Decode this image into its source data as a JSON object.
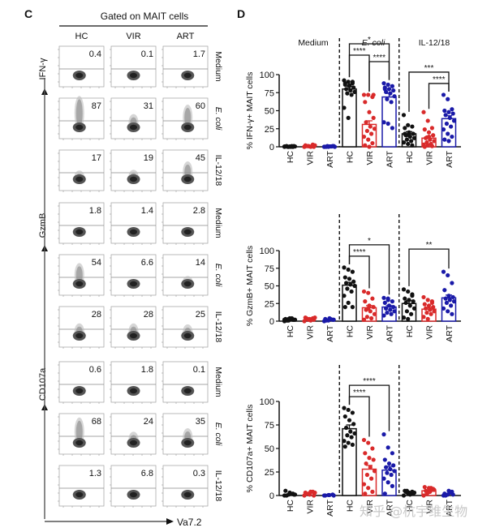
{
  "panel_c": {
    "label": "C",
    "header": "Gated on MAIT cells",
    "columns": [
      "HC",
      "VIR",
      "ART"
    ],
    "conditions": [
      "Medium",
      "E. coli",
      "IL-12/18"
    ],
    "x_axis_label": "Va7.2",
    "blocks": [
      {
        "marker": "IFN-γ",
        "values": [
          [
            "0.4",
            "0.1",
            "1.7"
          ],
          [
            "87",
            "31",
            "60"
          ],
          [
            "17",
            "19",
            "45"
          ]
        ]
      },
      {
        "marker": "GzmB",
        "values": [
          [
            "1.8",
            "1.4",
            "2.8"
          ],
          [
            "54",
            "6.6",
            "14"
          ],
          [
            "28",
            "28",
            "25"
          ]
        ]
      },
      {
        "marker": "CD107a",
        "values": [
          [
            "0.6",
            "1.8",
            "0.1"
          ],
          [
            "68",
            "24",
            "35"
          ],
          [
            "1.3",
            "6.8",
            "0.3"
          ]
        ]
      }
    ]
  },
  "panel_d": {
    "label": "D",
    "group_headers": [
      "Medium",
      "E. coli",
      "IL-12/18"
    ]
  },
  "colors": {
    "HC": "#111111",
    "VIR": "#d92a2a",
    "ART": "#1a1aa8"
  },
  "watermark": "知乎 @杭宇维生物",
  "chart_data": [
    {
      "type": "bar",
      "title": "",
      "ylabel": "% IFN-γ+ MAIT cells",
      "ylim": [
        0,
        100
      ],
      "yticks": [
        0,
        25,
        50,
        75,
        100
      ],
      "categories": [
        "HC",
        "VIR",
        "ART",
        "HC",
        "VIR",
        "ART",
        "HC",
        "VIR",
        "ART"
      ],
      "groups": [
        "Medium",
        "Medium",
        "Medium",
        "E. coli",
        "E. coli",
        "E. coli",
        "IL-12/18",
        "IL-12/18",
        "IL-12/18"
      ],
      "values": [
        0.5,
        1,
        0.5,
        80,
        31,
        69,
        18,
        12,
        39
      ],
      "errors": [
        0.2,
        0.4,
        0.2,
        4,
        5,
        5,
        3,
        3,
        4
      ],
      "points": [
        [
          0,
          0,
          0,
          0.5,
          0.5,
          1,
          1,
          0,
          0.5,
          0,
          1,
          0.5,
          0,
          0,
          0.5
        ],
        [
          0,
          1,
          3,
          2,
          0.5,
          0,
          1,
          0,
          2,
          1,
          0.5,
          0
        ],
        [
          0,
          0.5,
          1,
          0,
          0.5,
          1,
          0,
          0.5,
          0,
          1,
          0.5,
          0,
          0
        ],
        [
          92,
          90,
          88,
          86,
          84,
          82,
          80,
          78,
          76,
          74,
          72,
          54,
          40,
          90,
          88,
          85
        ],
        [
          72,
          72,
          69,
          62,
          48,
          40,
          34,
          28,
          25,
          22,
          18,
          14,
          10,
          5,
          2,
          0,
          72
        ],
        [
          88,
          86,
          84,
          82,
          80,
          78,
          76,
          74,
          70,
          66,
          62,
          34,
          32,
          26,
          80
        ],
        [
          44,
          30,
          28,
          26,
          20,
          18,
          16,
          14,
          12,
          10,
          8,
          6,
          4,
          2,
          18,
          16
        ],
        [
          48,
          36,
          26,
          24,
          20,
          16,
          12,
          10,
          8,
          6,
          4,
          3,
          2,
          1,
          0,
          14
        ],
        [
          72,
          66,
          52,
          50,
          48,
          46,
          44,
          40,
          36,
          32,
          28,
          24,
          18,
          14,
          10,
          8
        ]
      ],
      "significance": [
        {
          "from": 3,
          "to": 5,
          "label": "*"
        },
        {
          "from": 3,
          "to": 4,
          "label": "****"
        },
        {
          "from": 4,
          "to": 5,
          "label": "****"
        },
        {
          "from": 6,
          "to": 8,
          "label": "***"
        },
        {
          "from": 7,
          "to": 8,
          "label": "****"
        }
      ]
    },
    {
      "type": "bar",
      "title": "",
      "ylabel": "% GzmB+ MAIT cells",
      "ylim": [
        0,
        100
      ],
      "yticks": [
        0,
        25,
        50,
        75,
        100
      ],
      "categories": [
        "HC",
        "VIR",
        "ART",
        "HC",
        "VIR",
        "ART",
        "HC",
        "VIR",
        "ART"
      ],
      "groups": [
        "Medium",
        "Medium",
        "Medium",
        "E. coli",
        "E. coli",
        "E. coli",
        "IL-12/18",
        "IL-12/18",
        "IL-12/18"
      ],
      "values": [
        2,
        3,
        2,
        51,
        19,
        20,
        25,
        17,
        33
      ],
      "errors": [
        0.5,
        0.5,
        0.5,
        4,
        3,
        2,
        4,
        2,
        4
      ],
      "points": [
        [
          0,
          1,
          2,
          3,
          4,
          2,
          1,
          3,
          2,
          1,
          4,
          2,
          3
        ],
        [
          0,
          2,
          4,
          5,
          3,
          2,
          4,
          1,
          5,
          3
        ],
        [
          0,
          1,
          2,
          3,
          4,
          2,
          1,
          3
        ],
        [
          76,
          73,
          70,
          62,
          60,
          56,
          54,
          52,
          50,
          46,
          42,
          36,
          26,
          20,
          20
        ],
        [
          42,
          40,
          32,
          28,
          22,
          20,
          16,
          14,
          10,
          6,
          4,
          2,
          18
        ],
        [
          33,
          30,
          28,
          26,
          22,
          20,
          18,
          16,
          14,
          12,
          10,
          8,
          32
        ],
        [
          45,
          42,
          38,
          32,
          30,
          28,
          26,
          22,
          18,
          14,
          10,
          5,
          3,
          36
        ],
        [
          34,
          30,
          28,
          24,
          22,
          20,
          18,
          16,
          14,
          12,
          10,
          6,
          3,
          26
        ],
        [
          70,
          65,
          54,
          44,
          36,
          34,
          32,
          30,
          28,
          26,
          22,
          18,
          14,
          10
        ]
      ],
      "significance": [
        {
          "from": 3,
          "to": 5,
          "label": "*"
        },
        {
          "from": 3,
          "to": 4,
          "label": "****"
        },
        {
          "from": 6,
          "to": 8,
          "label": "**"
        }
      ]
    },
    {
      "type": "bar",
      "title": "",
      "ylabel": "% CD107a+ MAIT cells",
      "ylim": [
        0,
        100
      ],
      "yticks": [
        0,
        25,
        50,
        75,
        100
      ],
      "categories": [
        "HC",
        "VIR",
        "ART",
        "HC",
        "VIR",
        "ART",
        "HC",
        "VIR",
        "ART"
      ],
      "groups": [
        "Medium",
        "Medium",
        "Medium",
        "E. coli",
        "E. coli",
        "E. coli",
        "IL-12/18",
        "IL-12/18",
        "IL-12/18"
      ],
      "values": [
        1.5,
        2,
        0.5,
        71,
        28,
        27,
        3,
        5,
        1
      ],
      "errors": [
        0.5,
        0.5,
        0.2,
        4,
        4,
        4,
        0.5,
        1,
        0.5
      ],
      "points": [
        [
          0,
          1,
          2,
          5,
          3,
          1,
          0,
          2,
          1
        ],
        [
          0,
          2,
          4,
          3,
          1,
          0,
          2,
          4,
          3
        ],
        [
          0,
          0.5,
          1,
          0,
          0.5,
          0
        ],
        [
          93,
          91,
          88,
          84,
          80,
          76,
          72,
          68,
          66,
          64,
          62,
          58,
          56,
          54,
          52
        ],
        [
          59,
          56,
          50,
          45,
          40,
          38,
          34,
          30,
          26,
          22,
          18,
          12,
          8,
          4,
          2
        ],
        [
          65,
          51,
          45,
          38,
          34,
          32,
          30,
          28,
          26,
          24,
          22,
          18,
          14,
          10,
          2
        ],
        [
          0,
          2,
          4,
          5,
          3,
          2,
          4,
          1,
          3,
          5
        ],
        [
          0,
          3,
          6,
          9,
          8,
          7,
          5,
          4,
          6,
          2,
          8
        ],
        [
          0,
          1,
          4,
          2,
          5,
          1,
          0,
          3
        ]
      ],
      "significance": [
        {
          "from": 3,
          "to": 5,
          "label": "****"
        },
        {
          "from": 3,
          "to": 4,
          "label": "****"
        }
      ]
    }
  ]
}
